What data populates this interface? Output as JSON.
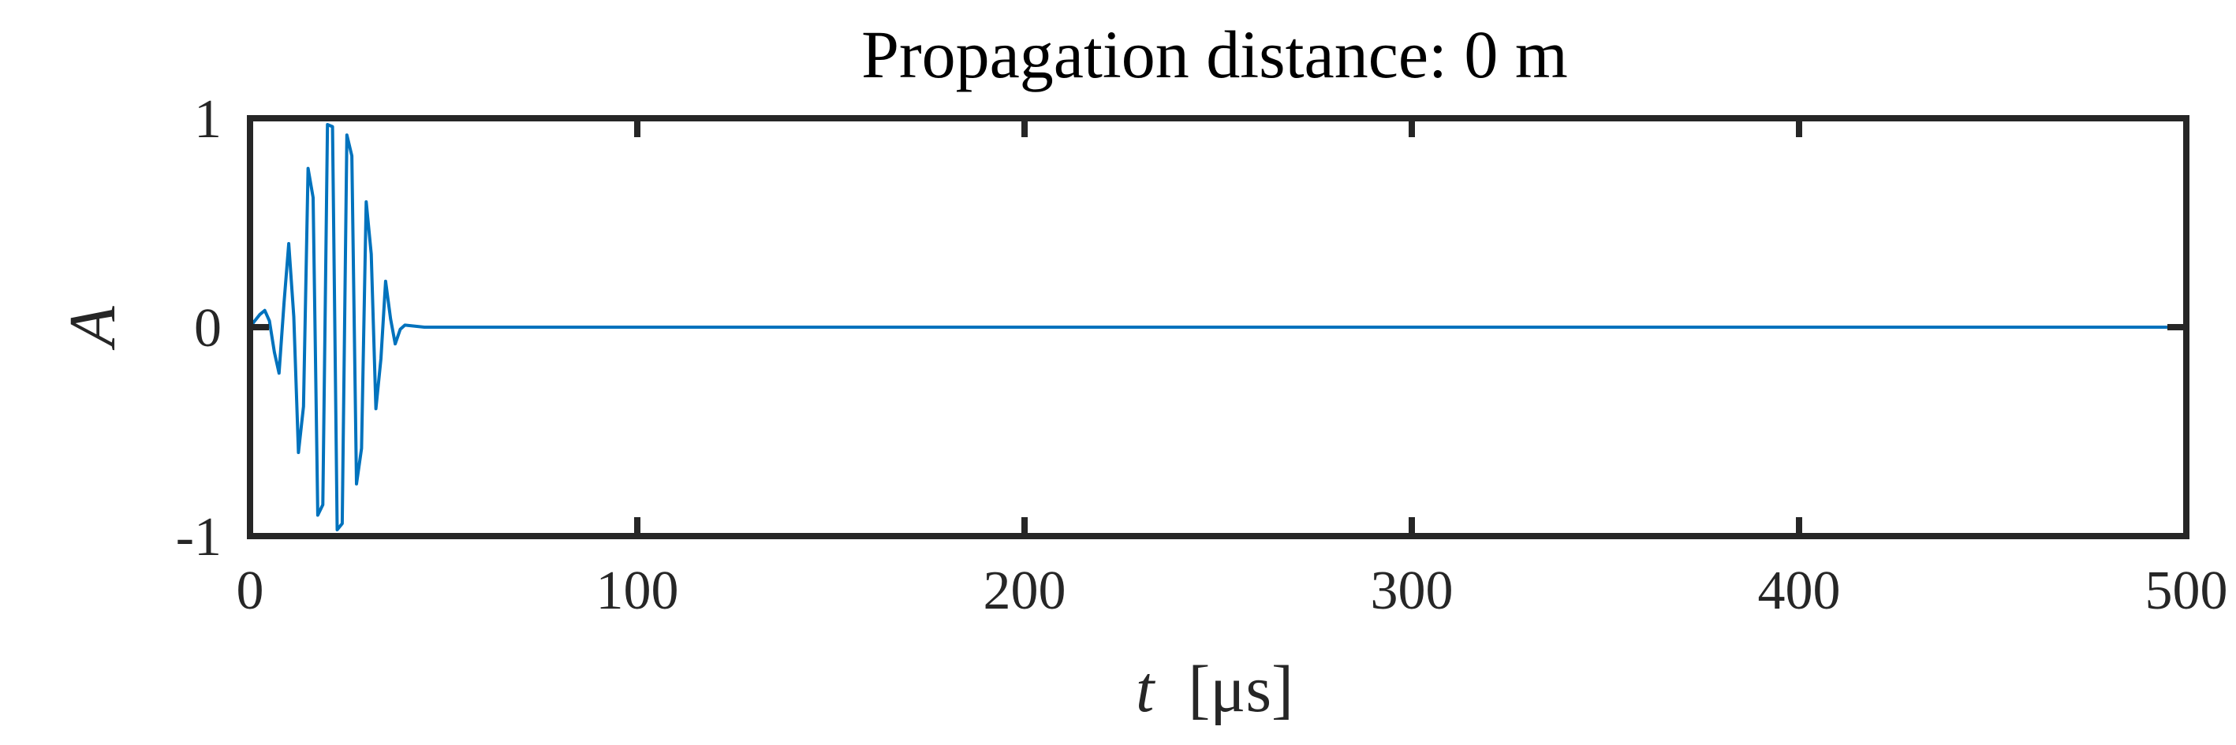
{
  "chart_data": {
    "type": "line",
    "title": "Propagation distance: 0 m",
    "xlabel": {
      "symbol": "t",
      "unit": "[μs]"
    },
    "ylabel": "A",
    "xlim": [
      0,
      500
    ],
    "ylim": [
      -1,
      1
    ],
    "x_ticks": [
      0,
      100,
      200,
      300,
      400,
      500
    ],
    "x_tick_labels": [
      "0",
      "100",
      "200",
      "300",
      "400",
      "500"
    ],
    "y_ticks": [
      -1,
      0,
      1
    ],
    "y_tick_labels": [
      "-1",
      "0",
      "1"
    ],
    "grid": false,
    "series": [
      {
        "color": "#0072BD",
        "x": [
          0,
          1.2,
          2.5,
          3.8,
          5.0,
          6.3,
          7.5,
          8.8,
          10.0,
          11.3,
          12.5,
          13.8,
          15.0,
          16.3,
          17.5,
          18.8,
          20.0,
          21.3,
          22.5,
          23.8,
          25.0,
          26.3,
          27.5,
          28.8,
          30.0,
          31.3,
          32.5,
          33.8,
          35.0,
          36.3,
          37.5,
          38.8,
          40.0,
          45,
          100,
          200,
          300,
          400,
          500
        ],
        "y": [
          0,
          0.03,
          0.06,
          0.08,
          0.03,
          -0.12,
          -0.22,
          0.12,
          0.4,
          0.05,
          -0.6,
          -0.38,
          0.76,
          0.62,
          -0.9,
          -0.85,
          0.97,
          0.96,
          -0.97,
          -0.94,
          0.92,
          0.82,
          -0.75,
          -0.58,
          0.6,
          0.35,
          -0.39,
          -0.15,
          0.22,
          0.04,
          -0.08,
          -0.01,
          0.01,
          0,
          0,
          0,
          0,
          0,
          0
        ]
      }
    ]
  }
}
